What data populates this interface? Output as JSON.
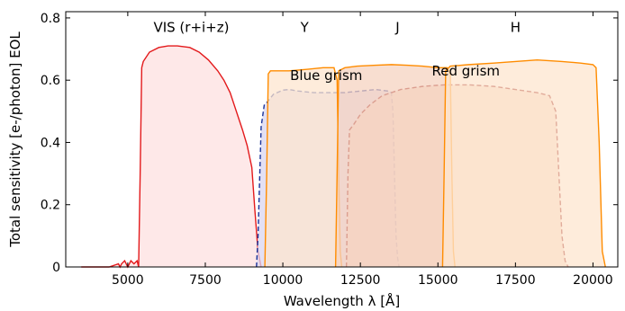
{
  "chart_data": {
    "type": "area",
    "xlabel": "Wavelength λ [Å]",
    "ylabel": "Total sensitivity [e-/photon] EOL",
    "xlim": [
      3000,
      20800
    ],
    "ylim": [
      0,
      0.82
    ],
    "xticks": [
      {
        "value": 5000,
        "label": "5000"
      },
      {
        "value": 7500,
        "label": "7500"
      },
      {
        "value": 10000,
        "label": "10000"
      },
      {
        "value": 12500,
        "label": "12500"
      },
      {
        "value": 15000,
        "label": "15000"
      },
      {
        "value": 17500,
        "label": "17500"
      },
      {
        "value": 20000,
        "label": "20000"
      }
    ],
    "yticks": [
      {
        "value": 0,
        "label": "0"
      },
      {
        "value": 0.2,
        "label": "0.2"
      },
      {
        "value": 0.4,
        "label": "0.4"
      },
      {
        "value": 0.6,
        "label": "0.6"
      },
      {
        "value": 0.8,
        "label": "0.8"
      }
    ],
    "grid": false,
    "series": [
      {
        "id": "vis",
        "color": "#e31a1c",
        "fill": "#fde0e0",
        "dash": false,
        "x": [
          3500,
          4400,
          4700,
          4750,
          4800,
          4900,
          5000,
          5100,
          5200,
          5300,
          5350,
          5400,
          5450,
          5500,
          5700,
          6000,
          6300,
          6600,
          7000,
          7300,
          7600,
          7900,
          8100,
          8300,
          8500,
          8700,
          8850,
          9000,
          9100,
          9200,
          9300
        ],
        "y": [
          0,
          0,
          0.01,
          0,
          0.01,
          0.02,
          0,
          0.02,
          0.01,
          0.02,
          0,
          0.3,
          0.64,
          0.66,
          0.69,
          0.705,
          0.71,
          0.71,
          0.705,
          0.69,
          0.665,
          0.63,
          0.6,
          0.56,
          0.5,
          0.44,
          0.39,
          0.32,
          0.18,
          0.05,
          0
        ]
      },
      {
        "id": "blue-grism",
        "color": "#1a3399",
        "fill": "#d9d6f0",
        "dash": true,
        "x": [
          9150,
          9200,
          9300,
          9400,
          9500,
          9700,
          10000,
          10200,
          10500,
          11000,
          11500,
          12000,
          12500,
          13000,
          13400,
          13500,
          13550,
          13600,
          13650,
          13700,
          13750
        ],
        "y": [
          0,
          0.1,
          0.45,
          0.52,
          0.53,
          0.555,
          0.568,
          0.57,
          0.565,
          0.56,
          0.56,
          0.56,
          0.565,
          0.57,
          0.565,
          0.56,
          0.5,
          0.3,
          0.1,
          0.03,
          0
        ]
      },
      {
        "id": "y-band",
        "color": "#ff8c00",
        "fill": "#fde6cf",
        "dash": false,
        "x": [
          9420,
          9480,
          9530,
          9600,
          10200,
          10800,
          11300,
          11650,
          11750,
          11800,
          11850,
          11900
        ],
        "y": [
          0,
          0.3,
          0.62,
          0.63,
          0.63,
          0.635,
          0.64,
          0.64,
          0.6,
          0.3,
          0.05,
          0
        ]
      },
      {
        "id": "red-grism",
        "color": "#8b0000",
        "fill": "#f5d3c0",
        "dash": true,
        "x": [
          12050,
          12100,
          12150,
          12300,
          12500,
          12800,
          13200,
          13800,
          14500,
          15200,
          16000,
          16800,
          17500,
          18200,
          18600,
          18800,
          18900,
          19000,
          19100,
          19200
        ],
        "y": [
          0,
          0.3,
          0.44,
          0.46,
          0.49,
          0.52,
          0.55,
          0.57,
          0.58,
          0.585,
          0.585,
          0.58,
          0.57,
          0.56,
          0.55,
          0.5,
          0.3,
          0.1,
          0.02,
          0
        ]
      },
      {
        "id": "j-band",
        "color": "#ff8c00",
        "fill": "#f5d3c0",
        "dash": false,
        "x": [
          11700,
          11750,
          11800,
          12000,
          12400,
          13000,
          13500,
          14000,
          14500,
          15000,
          15300,
          15400,
          15450,
          15500,
          15550
        ],
        "y": [
          0,
          0.3,
          0.63,
          0.64,
          0.645,
          0.648,
          0.65,
          0.648,
          0.645,
          0.64,
          0.64,
          0.62,
          0.3,
          0.05,
          0
        ]
      },
      {
        "id": "h-band",
        "color": "#ff8c00",
        "fill": "#fde6cf",
        "dash": false,
        "x": [
          15150,
          15200,
          15250,
          15400,
          16000,
          16800,
          17500,
          18200,
          19000,
          19600,
          20000,
          20100,
          20200,
          20300,
          20400
        ],
        "y": [
          0,
          0.3,
          0.63,
          0.645,
          0.65,
          0.655,
          0.66,
          0.665,
          0.66,
          0.655,
          0.65,
          0.64,
          0.4,
          0.05,
          0
        ]
      }
    ],
    "annotations": [
      {
        "id": "vis",
        "text": "VIS (r+i+z)",
        "x": 7050,
        "y": 0.77
      },
      {
        "id": "y",
        "text": "Y",
        "x": 10700,
        "y": 0.77
      },
      {
        "id": "j",
        "text": "J",
        "x": 13700,
        "y": 0.77
      },
      {
        "id": "h",
        "text": "H",
        "x": 17500,
        "y": 0.77
      },
      {
        "id": "blue-grism",
        "text": "Blue grism",
        "x": 11400,
        "y": 0.615
      },
      {
        "id": "red-grism",
        "text": "Red grism",
        "x": 15900,
        "y": 0.63
      }
    ]
  }
}
